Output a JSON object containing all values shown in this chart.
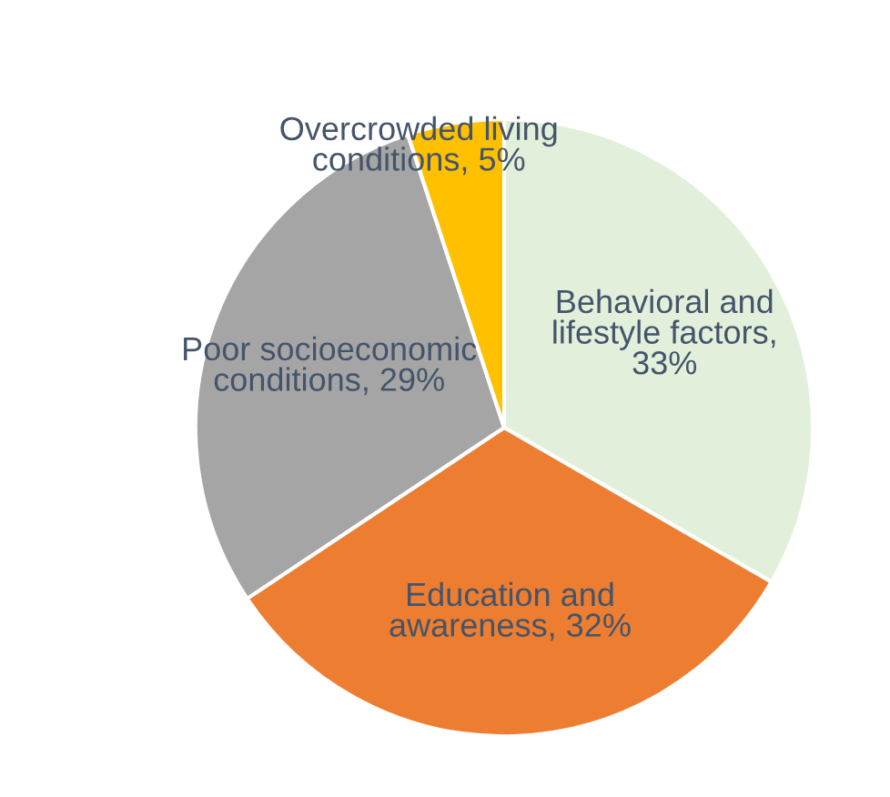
{
  "chart_data": {
    "type": "pie",
    "categories": [
      "Behavioral and lifestyle factors, 33%",
      "Education and awareness, 32%",
      "Poor socioeconomic conditions, 29%",
      "Overcrowded living conditions, 5%"
    ],
    "values": [
      33,
      32,
      29,
      5
    ],
    "colors": [
      "#e2efda",
      "#ed7d31",
      "#a5a5a5",
      "#ffc000"
    ]
  }
}
